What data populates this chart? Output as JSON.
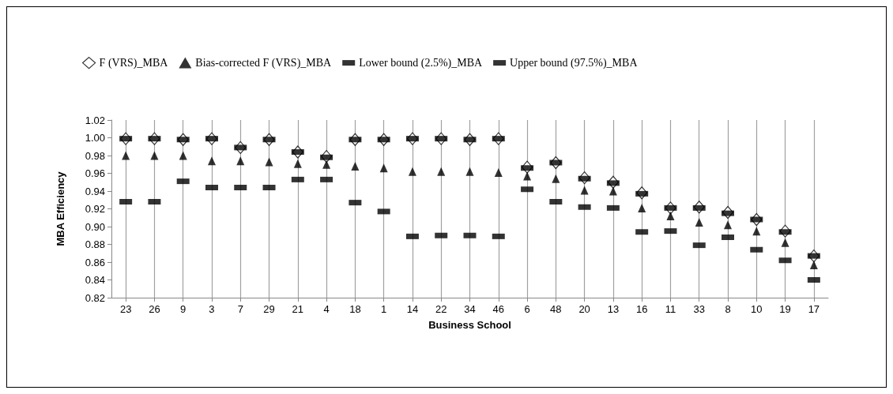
{
  "chart_data": {
    "type": "scatter",
    "categories": [
      "23",
      "26",
      "9",
      "3",
      "7",
      "29",
      "21",
      "4",
      "18",
      "1",
      "14",
      "22",
      "34",
      "46",
      "6",
      "48",
      "20",
      "13",
      "16",
      "11",
      "33",
      "8",
      "10",
      "19",
      "17"
    ],
    "series": [
      {
        "name": "F (VRS)_MBA",
        "color": "#000000",
        "marker": "diamond",
        "values": [
          0.999,
          0.999,
          0.998,
          0.999,
          0.989,
          0.998,
          0.984,
          0.979,
          0.998,
          0.998,
          0.999,
          0.999,
          0.998,
          0.999,
          0.967,
          0.972,
          0.955,
          0.95,
          0.938,
          0.921,
          0.922,
          0.916,
          0.908,
          0.895,
          0.867
        ]
      },
      {
        "name": "Bias-corrected F (VRS)_MBA",
        "color": "#000000",
        "marker": "triangle",
        "values": [
          0.98,
          0.98,
          0.98,
          0.974,
          0.974,
          0.973,
          0.971,
          0.97,
          0.968,
          0.966,
          0.962,
          0.962,
          0.962,
          0.961,
          0.957,
          0.954,
          0.941,
          0.94,
          0.921,
          0.912,
          0.905,
          0.902,
          0.895,
          0.882,
          0.857
        ]
      },
      {
        "name": "Lower bound (2.5%)_MBA",
        "color": "#000000",
        "marker": "square",
        "values": [
          0.928,
          0.928,
          0.951,
          0.944,
          0.944,
          0.944,
          0.953,
          0.953,
          0.927,
          0.917,
          0.889,
          0.89,
          0.89,
          0.889,
          0.942,
          0.928,
          0.922,
          0.921,
          0.894,
          0.895,
          0.879,
          0.888,
          0.874,
          0.862,
          0.84
        ]
      },
      {
        "name": "Upper bound (97.5%)_MBA",
        "color": "#000000",
        "marker": "square",
        "values": [
          0.999,
          0.999,
          0.998,
          0.999,
          0.989,
          0.998,
          0.984,
          0.978,
          0.998,
          0.998,
          0.999,
          0.999,
          0.998,
          0.999,
          0.966,
          0.972,
          0.954,
          0.949,
          0.937,
          0.921,
          0.921,
          0.915,
          0.908,
          0.894,
          0.867
        ]
      }
    ],
    "xlabel": "Business School",
    "ylabel": "MBA Efficiency",
    "ylim": [
      0.82,
      1.02
    ],
    "yticks": [
      0.82,
      0.84,
      0.86,
      0.88,
      {
        "value": 0.9,
        "label": "0.90"
      },
      0.92,
      0.94,
      0.96,
      0.98,
      {
        "value": 1,
        "label": "1.00"
      },
      1.02
    ],
    "grid": "x",
    "legend": "top"
  }
}
